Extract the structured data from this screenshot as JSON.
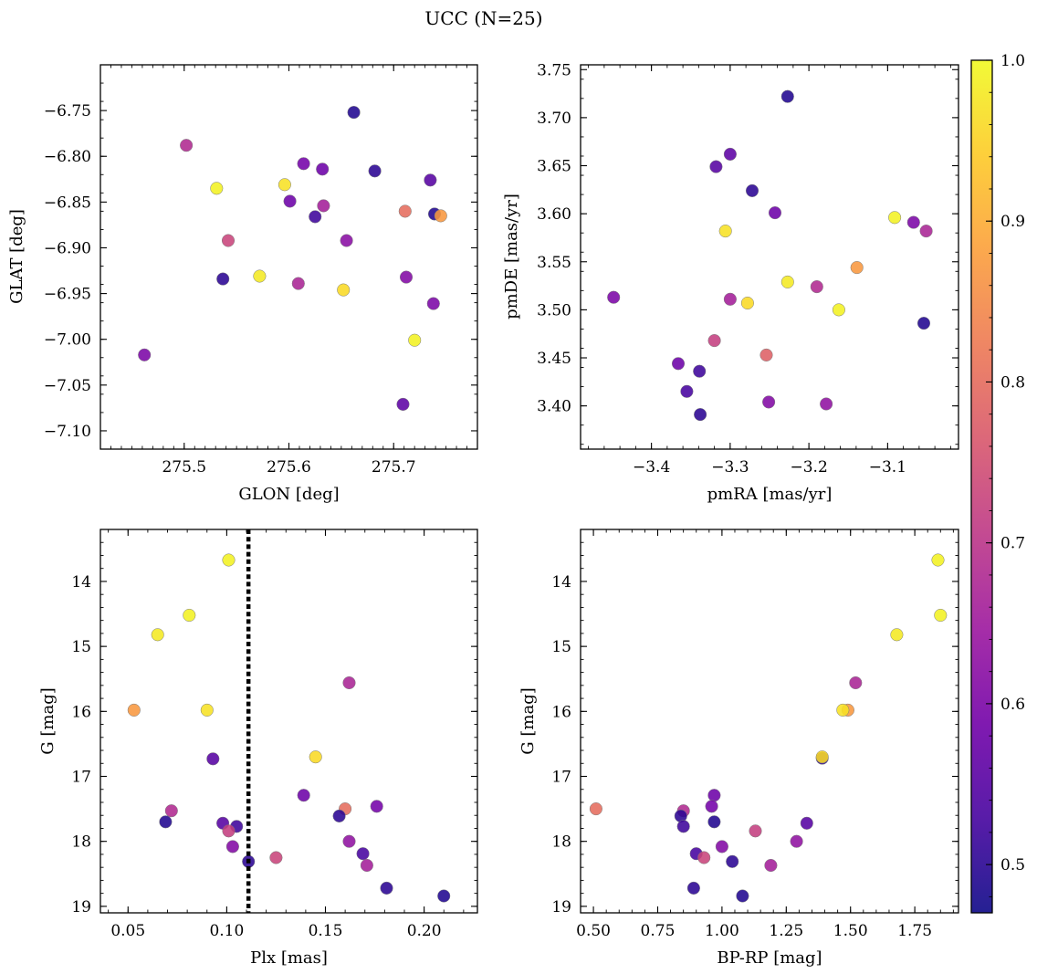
{
  "figure_title": "UCC (N=25)",
  "chart_data": [
    {
      "type": "scatter",
      "id": "glon-glat",
      "xlabel": "GLON [deg]",
      "ylabel": "GLAT [deg]",
      "xlim": [
        275.42,
        275.78
      ],
      "ylim": [
        -7.12,
        -6.7
      ],
      "y_inverted": false,
      "xticks": [
        275.5,
        275.6,
        275.7
      ],
      "xticklabels": [
        "275.5",
        "275.6",
        "275.7"
      ],
      "yticks": [
        -6.75,
        -6.8,
        -6.85,
        -6.9,
        -6.95,
        -7.0,
        -7.05,
        -7.1
      ],
      "yticklabels": [
        "−6.75",
        "−6.80",
        "−6.85",
        "−6.90",
        "−6.95",
        "−7.00",
        "−7.05",
        "−7.10"
      ],
      "points": [
        {
          "x": 275.662,
          "y": -6.752,
          "c": 0.49
        },
        {
          "x": 275.502,
          "y": -6.788,
          "c": 0.68
        },
        {
          "x": 275.614,
          "y": -6.808,
          "c": 0.59
        },
        {
          "x": 275.632,
          "y": -6.814,
          "c": 0.58
        },
        {
          "x": 275.682,
          "y": -6.816,
          "c": 0.5
        },
        {
          "x": 275.735,
          "y": -6.826,
          "c": 0.55
        },
        {
          "x": 275.596,
          "y": -6.831,
          "c": 0.97
        },
        {
          "x": 275.531,
          "y": -6.835,
          "c": 0.99
        },
        {
          "x": 275.601,
          "y": -6.849,
          "c": 0.58
        },
        {
          "x": 275.633,
          "y": -6.854,
          "c": 0.66
        },
        {
          "x": 275.711,
          "y": -6.86,
          "c": 0.8
        },
        {
          "x": 275.739,
          "y": -6.863,
          "c": 0.49
        },
        {
          "x": 275.745,
          "y": -6.865,
          "c": 0.87
        },
        {
          "x": 275.625,
          "y": -6.866,
          "c": 0.52
        },
        {
          "x": 275.542,
          "y": -6.892,
          "c": 0.73
        },
        {
          "x": 275.655,
          "y": -6.892,
          "c": 0.62
        },
        {
          "x": 275.572,
          "y": -6.931,
          "c": 0.98
        },
        {
          "x": 275.712,
          "y": -6.932,
          "c": 0.61
        },
        {
          "x": 275.537,
          "y": -6.934,
          "c": 0.5
        },
        {
          "x": 275.609,
          "y": -6.939,
          "c": 0.67
        },
        {
          "x": 275.652,
          "y": -6.946,
          "c": 0.96
        },
        {
          "x": 275.738,
          "y": -6.961,
          "c": 0.6
        },
        {
          "x": 275.72,
          "y": -7.001,
          "c": 0.99
        },
        {
          "x": 275.462,
          "y": -7.017,
          "c": 0.6
        },
        {
          "x": 275.709,
          "y": -7.071,
          "c": 0.56
        }
      ]
    },
    {
      "type": "scatter",
      "id": "pmra-pmde",
      "xlabel": "pmRA [mas/yr]",
      "ylabel": "pmDE [mas/yr]",
      "xlim": [
        -3.49,
        -3.01
      ],
      "ylim": [
        3.355,
        3.755
      ],
      "y_inverted": false,
      "xticks": [
        -3.4,
        -3.3,
        -3.2,
        -3.1
      ],
      "xticklabels": [
        "−3.4",
        "−3.3",
        "−3.2",
        "−3.1"
      ],
      "yticks": [
        3.4,
        3.45,
        3.5,
        3.55,
        3.6,
        3.65,
        3.7,
        3.75
      ],
      "yticklabels": [
        "3.40",
        "3.45",
        "3.50",
        "3.55",
        "3.60",
        "3.65",
        "3.70",
        "3.75"
      ],
      "points": [
        {
          "x": -3.227,
          "y": 3.722,
          "c": 0.49
        },
        {
          "x": -3.3,
          "y": 3.662,
          "c": 0.56
        },
        {
          "x": -3.318,
          "y": 3.649,
          "c": 0.55
        },
        {
          "x": -3.272,
          "y": 3.624,
          "c": 0.5
        },
        {
          "x": -3.243,
          "y": 3.601,
          "c": 0.58
        },
        {
          "x": -3.091,
          "y": 3.596,
          "c": 0.99
        },
        {
          "x": -3.067,
          "y": 3.591,
          "c": 0.6
        },
        {
          "x": -3.051,
          "y": 3.582,
          "c": 0.67
        },
        {
          "x": -3.306,
          "y": 3.582,
          "c": 0.97
        },
        {
          "x": -3.139,
          "y": 3.544,
          "c": 0.87
        },
        {
          "x": -3.227,
          "y": 3.529,
          "c": 0.98
        },
        {
          "x": -3.19,
          "y": 3.524,
          "c": 0.68
        },
        {
          "x": -3.448,
          "y": 3.513,
          "c": 0.6
        },
        {
          "x": -3.3,
          "y": 3.511,
          "c": 0.66
        },
        {
          "x": -3.278,
          "y": 3.507,
          "c": 0.96
        },
        {
          "x": -3.162,
          "y": 3.5,
          "c": 0.99
        },
        {
          "x": -3.054,
          "y": 3.486,
          "c": 0.49
        },
        {
          "x": -3.32,
          "y": 3.468,
          "c": 0.72
        },
        {
          "x": -3.254,
          "y": 3.453,
          "c": 0.78
        },
        {
          "x": -3.366,
          "y": 3.444,
          "c": 0.58
        },
        {
          "x": -3.339,
          "y": 3.436,
          "c": 0.52
        },
        {
          "x": -3.355,
          "y": 3.415,
          "c": 0.53
        },
        {
          "x": -3.251,
          "y": 3.404,
          "c": 0.61
        },
        {
          "x": -3.178,
          "y": 3.402,
          "c": 0.63
        },
        {
          "x": -3.338,
          "y": 3.391,
          "c": 0.5
        }
      ]
    },
    {
      "type": "scatter",
      "id": "plx-g",
      "xlabel": "Plx [mas]",
      "ylabel": "G [mag]",
      "xlim": [
        0.036,
        0.227
      ],
      "ylim": [
        19.1,
        13.2
      ],
      "y_inverted": true,
      "vline_x": 0.111,
      "xticks": [
        0.05,
        0.1,
        0.15,
        0.2
      ],
      "xticklabels": [
        "0.05",
        "0.10",
        "0.15",
        "0.20"
      ],
      "yticks": [
        14,
        15,
        16,
        17,
        18,
        19
      ],
      "yticklabels": [
        "14",
        "15",
        "16",
        "17",
        "18",
        "19"
      ],
      "points": [
        {
          "x": 0.101,
          "y": 13.67,
          "c": 0.99
        },
        {
          "x": 0.081,
          "y": 14.52,
          "c": 0.99
        },
        {
          "x": 0.065,
          "y": 14.82,
          "c": 0.98
        },
        {
          "x": 0.162,
          "y": 15.56,
          "c": 0.67
        },
        {
          "x": 0.053,
          "y": 15.98,
          "c": 0.87
        },
        {
          "x": 0.09,
          "y": 15.98,
          "c": 0.97
        },
        {
          "x": 0.145,
          "y": 16.7,
          "c": 0.96
        },
        {
          "x": 0.093,
          "y": 16.73,
          "c": 0.55
        },
        {
          "x": 0.139,
          "y": 17.29,
          "c": 0.58
        },
        {
          "x": 0.176,
          "y": 17.46,
          "c": 0.59
        },
        {
          "x": 0.16,
          "y": 17.5,
          "c": 0.8
        },
        {
          "x": 0.072,
          "y": 17.53,
          "c": 0.68
        },
        {
          "x": 0.157,
          "y": 17.61,
          "c": 0.5
        },
        {
          "x": 0.069,
          "y": 17.7,
          "c": 0.49
        },
        {
          "x": 0.098,
          "y": 17.72,
          "c": 0.55
        },
        {
          "x": 0.105,
          "y": 17.77,
          "c": 0.52
        },
        {
          "x": 0.101,
          "y": 17.84,
          "c": 0.72
        },
        {
          "x": 0.162,
          "y": 18.0,
          "c": 0.63
        },
        {
          "x": 0.103,
          "y": 18.08,
          "c": 0.61
        },
        {
          "x": 0.169,
          "y": 18.19,
          "c": 0.53
        },
        {
          "x": 0.125,
          "y": 18.25,
          "c": 0.73
        },
        {
          "x": 0.111,
          "y": 18.31,
          "c": 0.5
        },
        {
          "x": 0.171,
          "y": 18.37,
          "c": 0.66
        },
        {
          "x": 0.181,
          "y": 18.72,
          "c": 0.5
        },
        {
          "x": 0.21,
          "y": 18.84,
          "c": 0.49
        }
      ]
    },
    {
      "type": "scatter",
      "id": "bprp-g",
      "xlabel": "BP-RP [mag]",
      "ylabel": "G [mag]",
      "xlim": [
        0.45,
        1.92
      ],
      "ylim": [
        19.1,
        13.2
      ],
      "y_inverted": true,
      "xticks": [
        0.5,
        0.75,
        1.0,
        1.25,
        1.5,
        1.75
      ],
      "xticklabels": [
        "0.50",
        "0.75",
        "1.00",
        "1.25",
        "1.50",
        "1.75"
      ],
      "yticks": [
        14,
        15,
        16,
        17,
        18,
        19
      ],
      "yticklabels": [
        "14",
        "15",
        "16",
        "17",
        "18",
        "19"
      ],
      "points": [
        {
          "x": 1.84,
          "y": 13.67,
          "c": 0.99
        },
        {
          "x": 1.85,
          "y": 14.52,
          "c": 0.99
        },
        {
          "x": 1.68,
          "y": 14.82,
          "c": 0.98
        },
        {
          "x": 1.52,
          "y": 15.56,
          "c": 0.67
        },
        {
          "x": 1.49,
          "y": 15.98,
          "c": 0.87
        },
        {
          "x": 1.47,
          "y": 15.98,
          "c": 0.97
        },
        {
          "x": 1.39,
          "y": 16.72,
          "c": 0.5
        },
        {
          "x": 1.39,
          "y": 16.7,
          "c": 0.96
        },
        {
          "x": 0.97,
          "y": 17.29,
          "c": 0.58
        },
        {
          "x": 0.96,
          "y": 17.46,
          "c": 0.59
        },
        {
          "x": 0.51,
          "y": 17.5,
          "c": 0.8
        },
        {
          "x": 0.85,
          "y": 17.53,
          "c": 0.68
        },
        {
          "x": 0.84,
          "y": 17.61,
          "c": 0.5
        },
        {
          "x": 0.97,
          "y": 17.7,
          "c": 0.49
        },
        {
          "x": 1.33,
          "y": 17.72,
          "c": 0.55
        },
        {
          "x": 0.85,
          "y": 17.77,
          "c": 0.52
        },
        {
          "x": 1.13,
          "y": 17.84,
          "c": 0.72
        },
        {
          "x": 1.29,
          "y": 18.0,
          "c": 0.63
        },
        {
          "x": 1.0,
          "y": 18.08,
          "c": 0.61
        },
        {
          "x": 0.9,
          "y": 18.19,
          "c": 0.53
        },
        {
          "x": 0.93,
          "y": 18.25,
          "c": 0.73
        },
        {
          "x": 1.04,
          "y": 18.31,
          "c": 0.5
        },
        {
          "x": 1.19,
          "y": 18.37,
          "c": 0.66
        },
        {
          "x": 0.89,
          "y": 18.72,
          "c": 0.5
        },
        {
          "x": 1.08,
          "y": 18.84,
          "c": 0.49
        }
      ]
    }
  ],
  "colorbar": {
    "colormap": "plasma",
    "vmin": 0.47,
    "vmax": 1.0,
    "ticks": [
      0.5,
      0.6,
      0.7,
      0.8,
      0.9,
      1.0
    ],
    "ticklabels": [
      "0.5",
      "0.6",
      "0.7",
      "0.8",
      "0.9",
      "1.0"
    ],
    "stops": [
      "#0d0887",
      "#46039f",
      "#7201a8",
      "#9c179e",
      "#bd3786",
      "#d8576b",
      "#ed7953",
      "#fb9f3a",
      "#fdca26",
      "#f0f921"
    ]
  }
}
